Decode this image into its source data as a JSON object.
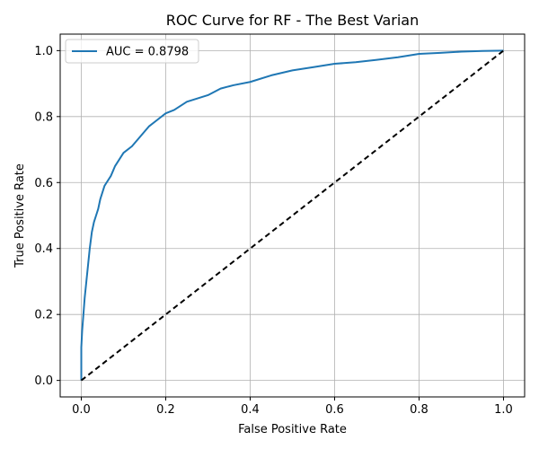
{
  "chart_data": {
    "type": "line",
    "title": "ROC Curve for RF - The Best Varian",
    "xlabel": "False Positive Rate",
    "ylabel": "True Positive Rate",
    "xlim": [
      -0.05,
      1.05
    ],
    "ylim": [
      -0.05,
      1.05
    ],
    "xticks": [
      0.0,
      0.2,
      0.4,
      0.6,
      0.8,
      1.0
    ],
    "yticks": [
      0.0,
      0.2,
      0.4,
      0.6,
      0.8,
      1.0
    ],
    "xtick_labels": [
      "0.0",
      "0.2",
      "0.4",
      "0.6",
      "0.8",
      "1.0"
    ],
    "ytick_labels": [
      "0.0",
      "0.2",
      "0.4",
      "0.6",
      "0.8",
      "1.0"
    ],
    "grid": true,
    "legend_position": "upper-left",
    "series": [
      {
        "name": "AUC = 0.8798",
        "color": "#1f77b4",
        "style": "solid",
        "x": [
          0.0,
          0.0,
          0.002,
          0.005,
          0.008,
          0.012,
          0.016,
          0.02,
          0.025,
          0.03,
          0.035,
          0.04,
          0.045,
          0.05,
          0.055,
          0.06,
          0.07,
          0.08,
          0.09,
          0.1,
          0.12,
          0.14,
          0.16,
          0.18,
          0.2,
          0.22,
          0.25,
          0.3,
          0.33,
          0.36,
          0.4,
          0.45,
          0.5,
          0.55,
          0.6,
          0.65,
          0.7,
          0.75,
          0.8,
          0.85,
          0.9,
          0.95,
          1.0
        ],
        "y": [
          0.0,
          0.1,
          0.15,
          0.2,
          0.25,
          0.3,
          0.35,
          0.4,
          0.45,
          0.48,
          0.5,
          0.52,
          0.55,
          0.57,
          0.59,
          0.6,
          0.62,
          0.65,
          0.67,
          0.69,
          0.71,
          0.74,
          0.77,
          0.79,
          0.81,
          0.82,
          0.845,
          0.865,
          0.885,
          0.895,
          0.905,
          0.925,
          0.94,
          0.95,
          0.96,
          0.965,
          0.972,
          0.98,
          0.99,
          0.993,
          0.997,
          0.999,
          1.0
        ]
      },
      {
        "name": "",
        "color": "#000000",
        "style": "dashed",
        "x": [
          0.0,
          1.0
        ],
        "y": [
          0.0,
          1.0
        ]
      }
    ]
  }
}
